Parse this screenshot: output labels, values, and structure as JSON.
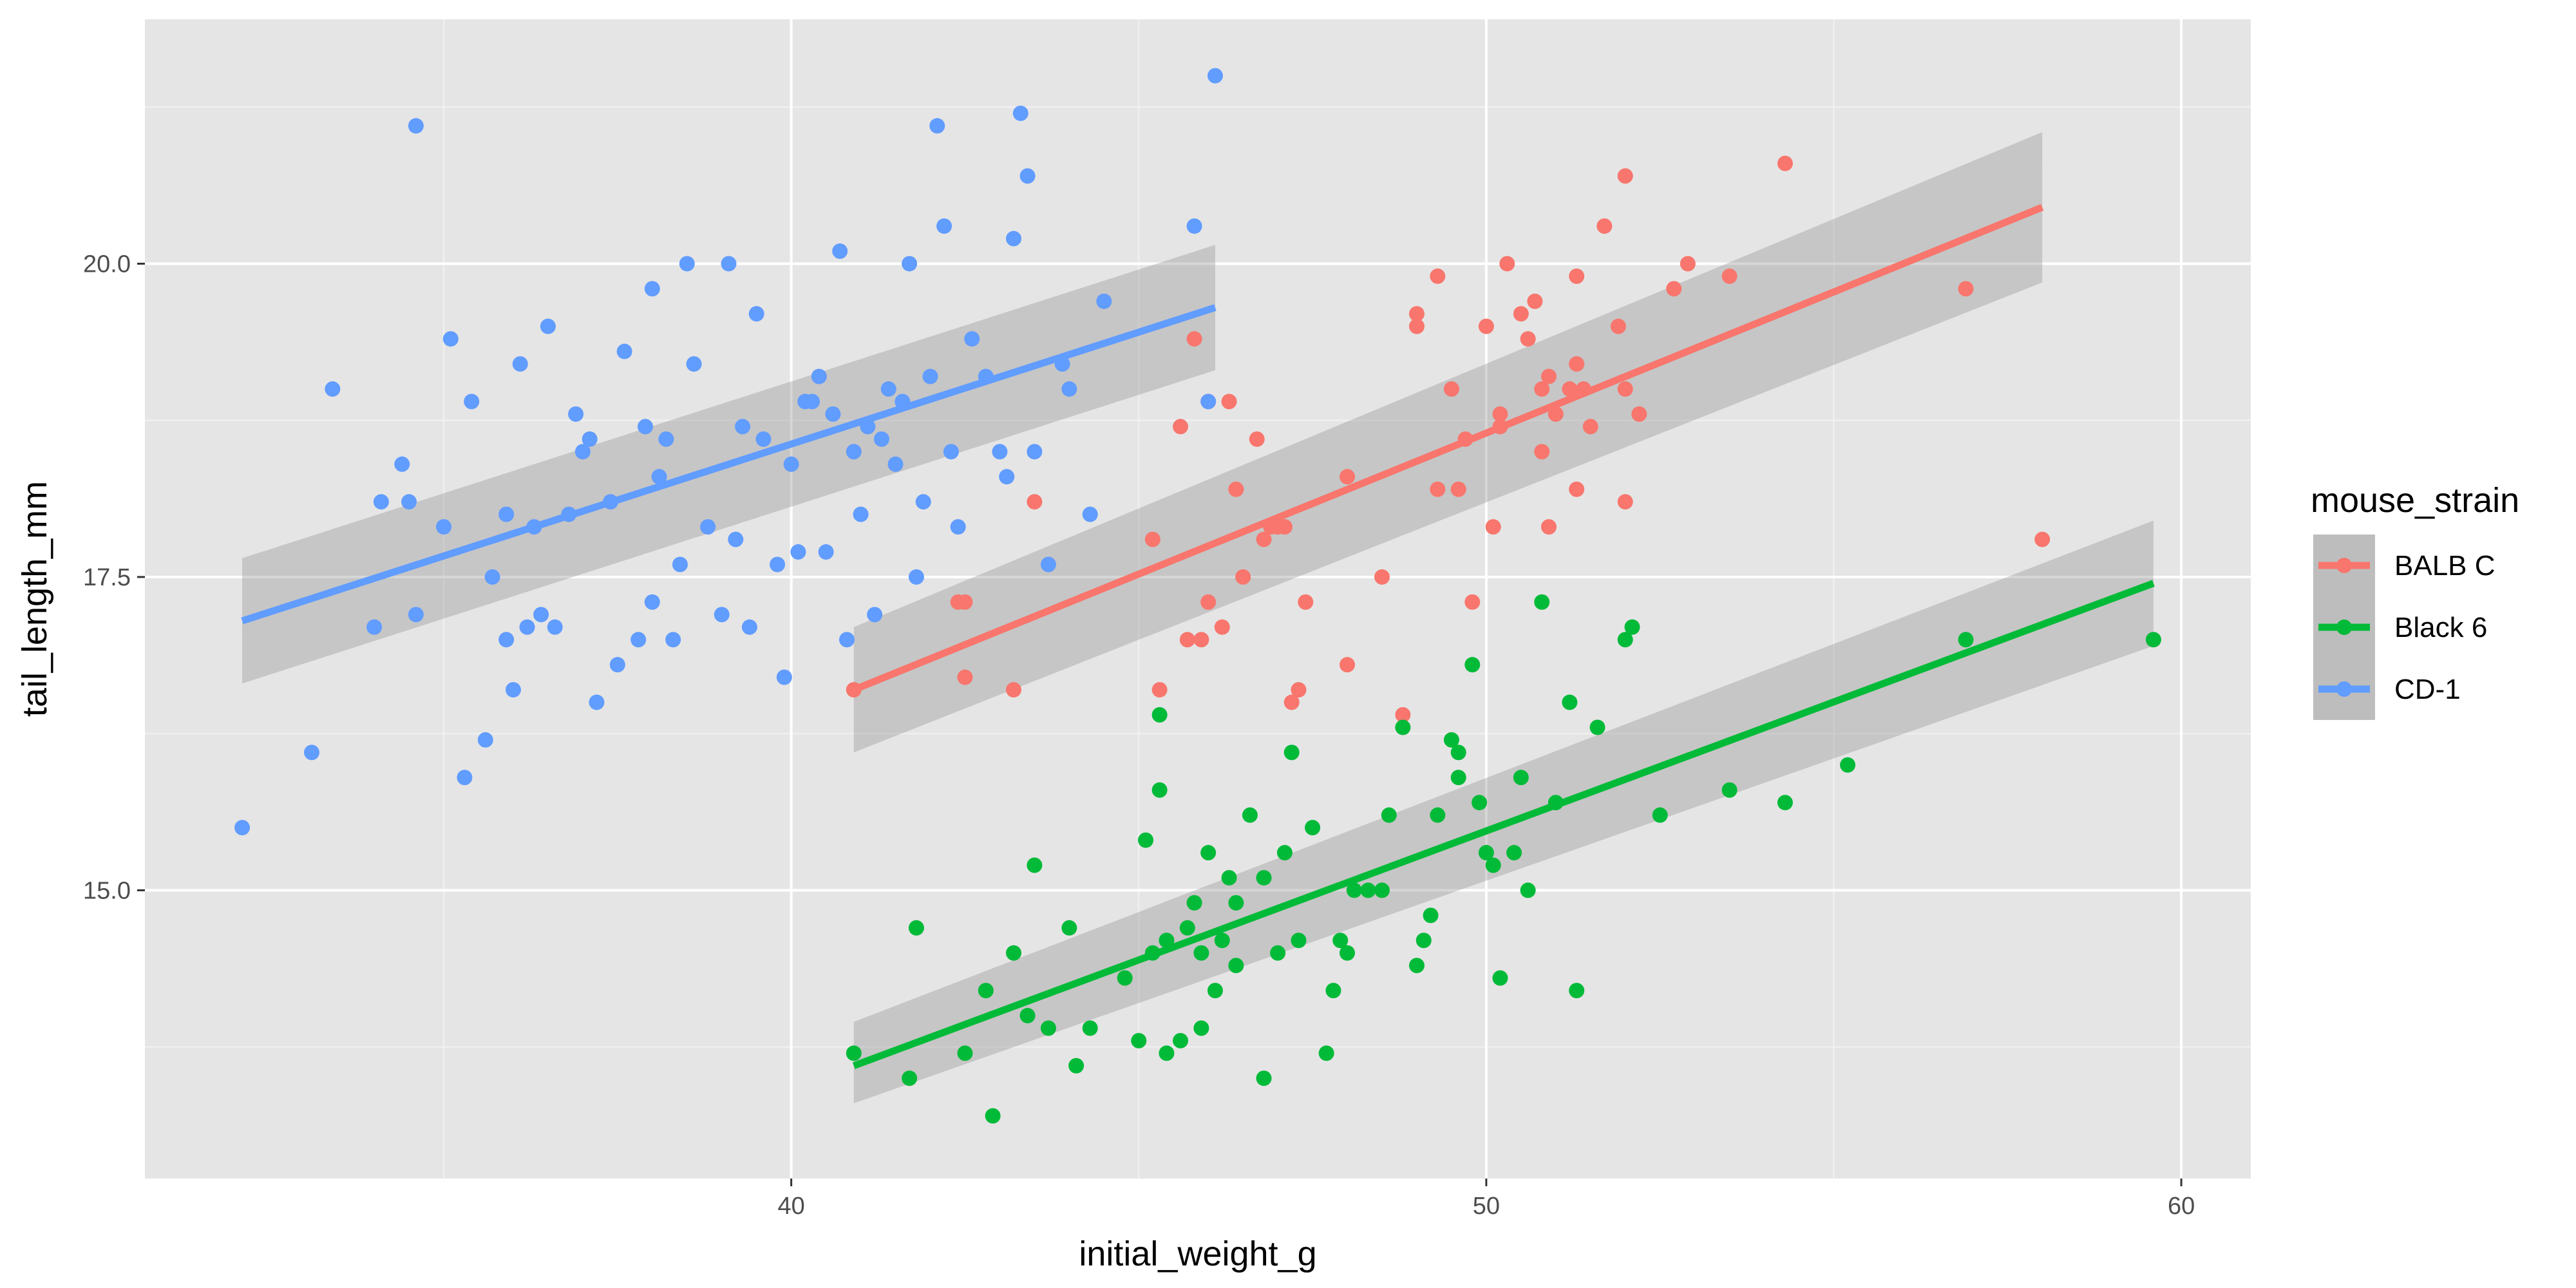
{
  "chart_data": {
    "type": "scatter",
    "xlabel": "initial_weight_g",
    "ylabel": "tail_length_mm",
    "xlim": [
      30.7,
      61.0
    ],
    "ylim": [
      12.7,
      21.95
    ],
    "x_ticks": [
      40,
      50,
      60
    ],
    "x_tick_labels": [
      "40",
      "50",
      "60"
    ],
    "y_ticks": [
      15.0,
      17.5,
      20.0
    ],
    "y_tick_labels": [
      "15.0",
      "17.5",
      "20.0"
    ],
    "grid": true,
    "background": "#e5e5e5",
    "legend": {
      "title": "mouse_strain",
      "placement": "right"
    },
    "series": [
      {
        "name": "BALB C",
        "color": "#F8766D",
        "points": [
          [
            40.9,
            16.6
          ],
          [
            42.4,
            17.3
          ],
          [
            42.5,
            17.3
          ],
          [
            42.5,
            16.7
          ],
          [
            43.2,
            16.6
          ],
          [
            43.5,
            18.1
          ],
          [
            45.2,
            17.8
          ],
          [
            45.3,
            16.6
          ],
          [
            45.6,
            18.7
          ],
          [
            45.7,
            17.0
          ],
          [
            45.8,
            19.4
          ],
          [
            45.9,
            17.0
          ],
          [
            46.0,
            17.3
          ],
          [
            46.0,
            18.9
          ],
          [
            46.2,
            17.1
          ],
          [
            46.3,
            18.9
          ],
          [
            46.4,
            18.2
          ],
          [
            46.5,
            17.5
          ],
          [
            46.7,
            18.6
          ],
          [
            46.8,
            17.8
          ],
          [
            46.9,
            17.9
          ],
          [
            47.0,
            17.9
          ],
          [
            47.1,
            17.9
          ],
          [
            47.2,
            16.5
          ],
          [
            47.3,
            16.6
          ],
          [
            47.4,
            17.3
          ],
          [
            48.0,
            16.8
          ],
          [
            48.0,
            18.3
          ],
          [
            48.5,
            17.5
          ],
          [
            48.8,
            16.4
          ],
          [
            49.0,
            19.5
          ],
          [
            49.0,
            19.6
          ],
          [
            49.3,
            19.9
          ],
          [
            49.3,
            18.2
          ],
          [
            49.5,
            19.0
          ],
          [
            49.6,
            18.2
          ],
          [
            49.7,
            18.6
          ],
          [
            49.8,
            17.3
          ],
          [
            50.0,
            19.5
          ],
          [
            50.1,
            17.9
          ],
          [
            50.2,
            18.7
          ],
          [
            50.2,
            18.8
          ],
          [
            50.3,
            20.0
          ],
          [
            50.5,
            19.6
          ],
          [
            50.6,
            19.4
          ],
          [
            50.7,
            19.7
          ],
          [
            50.8,
            18.5
          ],
          [
            50.8,
            19.0
          ],
          [
            50.9,
            17.9
          ],
          [
            50.9,
            19.1
          ],
          [
            51.0,
            18.8
          ],
          [
            51.2,
            19.0
          ],
          [
            51.3,
            19.9
          ],
          [
            51.3,
            18.2
          ],
          [
            51.3,
            19.2
          ],
          [
            51.4,
            19.0
          ],
          [
            51.5,
            18.7
          ],
          [
            51.7,
            20.3
          ],
          [
            51.9,
            19.5
          ],
          [
            52.0,
            20.7
          ],
          [
            52.0,
            19.0
          ],
          [
            52.0,
            18.1
          ],
          [
            52.2,
            18.8
          ],
          [
            52.7,
            19.8
          ],
          [
            52.9,
            20.0
          ],
          [
            53.5,
            19.9
          ],
          [
            54.3,
            20.8
          ],
          [
            56.9,
            19.8
          ],
          [
            58.0,
            17.8
          ]
        ]
      },
      {
        "name": "Black 6",
        "color": "#00BA38",
        "points": [
          [
            40.9,
            13.7
          ],
          [
            41.7,
            13.5
          ],
          [
            41.8,
            14.7
          ],
          [
            42.5,
            13.7
          ],
          [
            42.8,
            14.2
          ],
          [
            42.9,
            13.2
          ],
          [
            43.2,
            14.5
          ],
          [
            43.4,
            14.0
          ],
          [
            43.5,
            15.2
          ],
          [
            43.7,
            13.9
          ],
          [
            44.0,
            14.7
          ],
          [
            44.1,
            13.6
          ],
          [
            44.3,
            13.9
          ],
          [
            44.8,
            14.3
          ],
          [
            45.0,
            13.8
          ],
          [
            45.1,
            15.4
          ],
          [
            45.2,
            14.5
          ],
          [
            45.3,
            16.4
          ],
          [
            45.3,
            15.8
          ],
          [
            45.4,
            14.6
          ],
          [
            45.4,
            13.7
          ],
          [
            45.6,
            13.8
          ],
          [
            45.7,
            14.7
          ],
          [
            45.8,
            14.9
          ],
          [
            45.9,
            14.5
          ],
          [
            45.9,
            13.9
          ],
          [
            46.0,
            15.3
          ],
          [
            46.1,
            14.2
          ],
          [
            46.2,
            14.6
          ],
          [
            46.3,
            15.1
          ],
          [
            46.4,
            14.4
          ],
          [
            46.4,
            14.9
          ],
          [
            46.6,
            15.6
          ],
          [
            46.8,
            13.5
          ],
          [
            46.8,
            15.1
          ],
          [
            47.0,
            14.5
          ],
          [
            47.1,
            15.3
          ],
          [
            47.2,
            16.1
          ],
          [
            47.3,
            14.6
          ],
          [
            47.5,
            15.5
          ],
          [
            47.7,
            13.7
          ],
          [
            47.8,
            14.2
          ],
          [
            47.9,
            14.6
          ],
          [
            48.0,
            14.5
          ],
          [
            48.1,
            15.0
          ],
          [
            48.3,
            15.0
          ],
          [
            48.5,
            15.0
          ],
          [
            48.6,
            15.6
          ],
          [
            48.8,
            16.3
          ],
          [
            49.0,
            14.4
          ],
          [
            49.1,
            14.6
          ],
          [
            49.2,
            14.8
          ],
          [
            49.3,
            15.6
          ],
          [
            49.5,
            16.2
          ],
          [
            49.6,
            16.1
          ],
          [
            49.6,
            15.9
          ],
          [
            49.8,
            16.8
          ],
          [
            49.9,
            15.7
          ],
          [
            50.0,
            15.3
          ],
          [
            50.1,
            15.2
          ],
          [
            50.2,
            14.3
          ],
          [
            50.4,
            15.3
          ],
          [
            50.5,
            15.9
          ],
          [
            50.6,
            15.0
          ],
          [
            50.8,
            17.3
          ],
          [
            51.0,
            15.7
          ],
          [
            51.2,
            16.5
          ],
          [
            51.3,
            14.2
          ],
          [
            51.6,
            16.3
          ],
          [
            52.0,
            17.0
          ],
          [
            52.1,
            17.1
          ],
          [
            52.5,
            15.6
          ],
          [
            53.5,
            15.8
          ],
          [
            54.3,
            15.7
          ],
          [
            55.2,
            16.0
          ],
          [
            56.9,
            17.0
          ],
          [
            59.6,
            17.0
          ]
        ]
      },
      {
        "name": "CD-1",
        "color": "#619CFF",
        "points": [
          [
            32.1,
            15.5
          ],
          [
            33.1,
            16.1
          ],
          [
            33.4,
            19.0
          ],
          [
            34.0,
            17.1
          ],
          [
            34.1,
            18.1
          ],
          [
            34.4,
            18.4
          ],
          [
            34.5,
            18.1
          ],
          [
            34.6,
            17.2
          ],
          [
            34.6,
            21.1
          ],
          [
            35.0,
            17.9
          ],
          [
            35.1,
            19.4
          ],
          [
            35.3,
            15.9
          ],
          [
            35.4,
            18.9
          ],
          [
            35.6,
            16.2
          ],
          [
            35.7,
            17.5
          ],
          [
            35.9,
            17.0
          ],
          [
            35.9,
            18.0
          ],
          [
            36.0,
            16.6
          ],
          [
            36.1,
            19.2
          ],
          [
            36.2,
            17.1
          ],
          [
            36.3,
            17.9
          ],
          [
            36.4,
            17.2
          ],
          [
            36.5,
            19.5
          ],
          [
            36.6,
            17.1
          ],
          [
            36.8,
            18.0
          ],
          [
            36.9,
            18.8
          ],
          [
            37.0,
            18.5
          ],
          [
            37.1,
            18.6
          ],
          [
            37.2,
            16.5
          ],
          [
            37.4,
            18.1
          ],
          [
            37.5,
            16.8
          ],
          [
            37.6,
            19.3
          ],
          [
            37.8,
            17.0
          ],
          [
            37.9,
            18.7
          ],
          [
            38.0,
            17.3
          ],
          [
            38.0,
            19.8
          ],
          [
            38.1,
            18.3
          ],
          [
            38.2,
            18.6
          ],
          [
            38.3,
            17.0
          ],
          [
            38.4,
            17.6
          ],
          [
            38.5,
            20.0
          ],
          [
            38.6,
            19.2
          ],
          [
            38.8,
            17.9
          ],
          [
            39.0,
            17.2
          ],
          [
            39.1,
            20.0
          ],
          [
            39.2,
            17.8
          ],
          [
            39.3,
            18.7
          ],
          [
            39.4,
            17.1
          ],
          [
            39.5,
            19.6
          ],
          [
            39.6,
            18.6
          ],
          [
            39.8,
            17.6
          ],
          [
            39.9,
            16.7
          ],
          [
            40.0,
            18.4
          ],
          [
            40.1,
            17.7
          ],
          [
            40.2,
            18.9
          ],
          [
            40.3,
            18.9
          ],
          [
            40.4,
            19.1
          ],
          [
            40.5,
            17.7
          ],
          [
            40.6,
            18.8
          ],
          [
            40.7,
            20.1
          ],
          [
            40.8,
            17.0
          ],
          [
            40.9,
            18.5
          ],
          [
            41.0,
            18.0
          ],
          [
            41.1,
            18.7
          ],
          [
            41.2,
            17.2
          ],
          [
            41.3,
            18.6
          ],
          [
            41.4,
            19.0
          ],
          [
            41.5,
            18.4
          ],
          [
            41.6,
            18.9
          ],
          [
            41.7,
            20.0
          ],
          [
            41.8,
            17.5
          ],
          [
            41.9,
            18.1
          ],
          [
            42.0,
            19.1
          ],
          [
            42.1,
            21.1
          ],
          [
            42.2,
            20.3
          ],
          [
            42.3,
            18.5
          ],
          [
            42.4,
            17.9
          ],
          [
            42.6,
            19.4
          ],
          [
            42.8,
            19.1
          ],
          [
            43.0,
            18.5
          ],
          [
            43.1,
            18.3
          ],
          [
            43.2,
            20.2
          ],
          [
            43.3,
            21.2
          ],
          [
            43.4,
            20.7
          ],
          [
            43.5,
            18.5
          ],
          [
            43.7,
            17.6
          ],
          [
            43.9,
            19.2
          ],
          [
            44.0,
            19.0
          ],
          [
            44.3,
            18.0
          ],
          [
            44.5,
            19.7
          ],
          [
            45.8,
            20.3
          ],
          [
            46.0,
            18.9
          ],
          [
            46.1,
            21.5
          ]
        ]
      }
    ],
    "trend_lines": [
      {
        "series": "BALB C",
        "x": [
          40.9,
          58.0
        ],
        "y": [
          16.6,
          20.45
        ],
        "band_lower": [
          16.1,
          19.85
        ],
        "band_upper": [
          17.1,
          21.05
        ]
      },
      {
        "series": "Black 6",
        "x": [
          40.9,
          59.6
        ],
        "y": [
          13.6,
          17.45
        ],
        "band_lower": [
          13.3,
          16.95
        ],
        "band_upper": [
          13.95,
          17.95
        ]
      },
      {
        "series": "CD-1",
        "x": [
          32.1,
          46.1
        ],
        "y": [
          17.15,
          19.65
        ],
        "band_lower": [
          16.65,
          19.15
        ],
        "band_upper": [
          17.65,
          20.15
        ]
      }
    ]
  }
}
